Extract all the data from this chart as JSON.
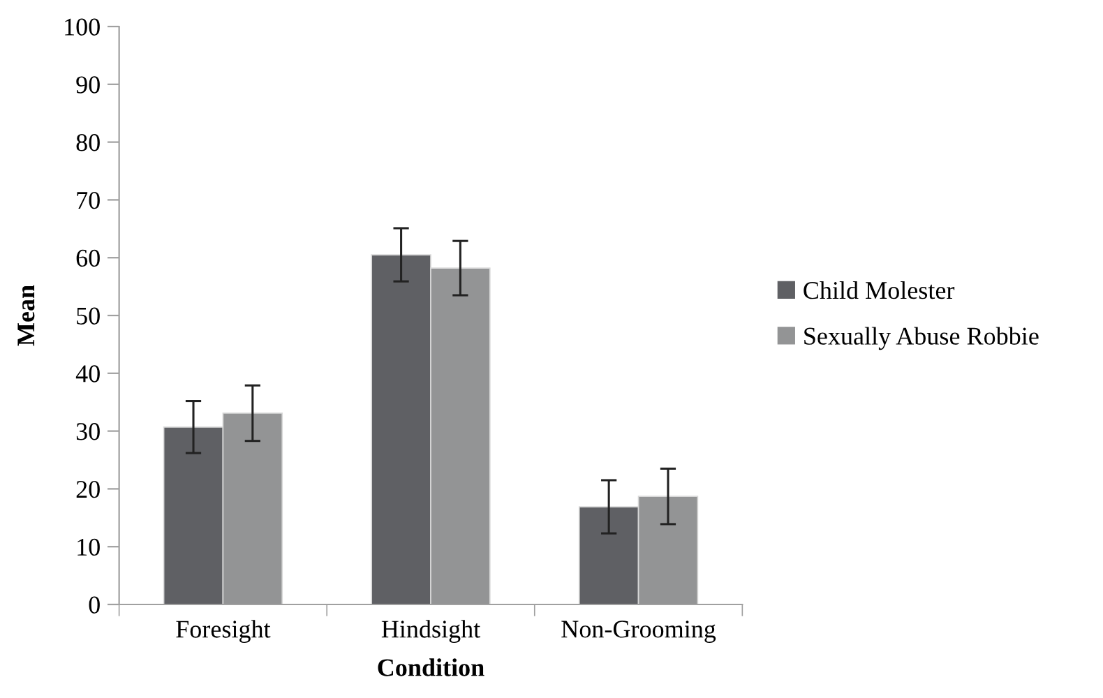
{
  "chart_data": {
    "type": "bar",
    "xlabel": "Condition",
    "ylabel": "Mean",
    "categories": [
      "Foresight",
      "Hindsight",
      "Non-Grooming"
    ],
    "series": [
      {
        "name": "Child Molester",
        "color": "#5f6064",
        "values": [
          30.7,
          60.5,
          16.9
        ],
        "errors": [
          4.5,
          4.6,
          4.6
        ]
      },
      {
        "name": "Sexually Abuse Robbie",
        "color": "#939495",
        "values": [
          33.1,
          58.2,
          18.7
        ],
        "errors": [
          4.8,
          4.7,
          4.8
        ]
      }
    ],
    "ylim": [
      0,
      100
    ],
    "yticks": [
      0,
      10,
      20,
      30,
      40,
      50,
      60,
      70,
      80,
      90,
      100
    ],
    "legend": "right",
    "grid": false
  }
}
